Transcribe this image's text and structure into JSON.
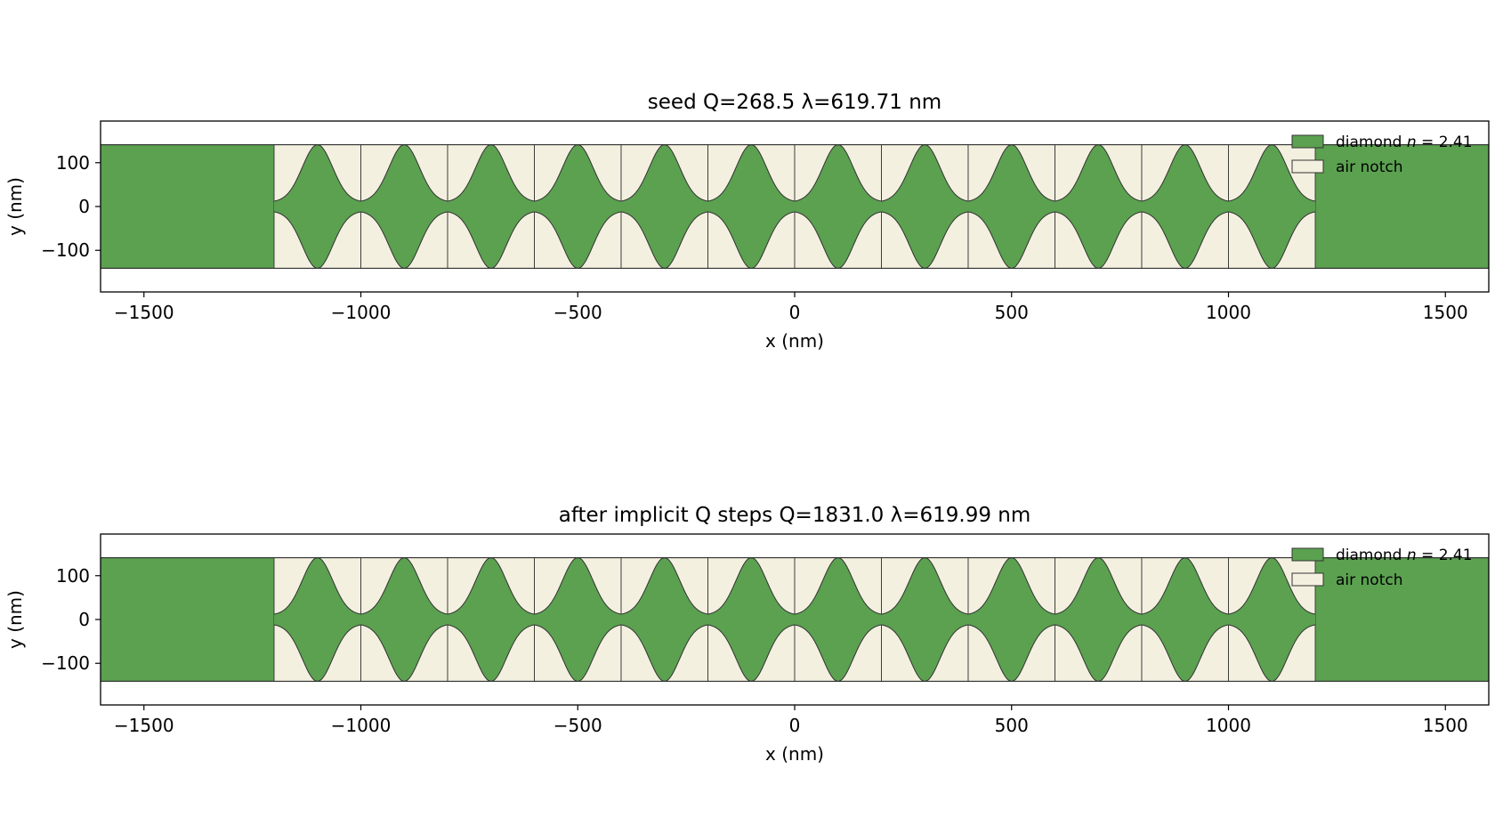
{
  "colors": {
    "diamond": "#5ba150",
    "air": "#f4f0e0",
    "edge": "#333333",
    "axes": "#000000"
  },
  "chart_data": [
    {
      "type": "area",
      "title": "seed  Q=268.5  λ=619.71 nm",
      "xlabel": "x (nm)",
      "ylabel": "y (nm)",
      "xlim": [
        -1600,
        1600
      ],
      "ylim": [
        -195,
        195
      ],
      "xticks": [
        -1500,
        -1000,
        -500,
        0,
        500,
        1000,
        1500
      ],
      "xtick_labels": [
        "−1500",
        "−1000",
        "−500",
        "0",
        "500",
        "1000",
        "1500"
      ],
      "yticks": [
        100,
        0,
        -100
      ],
      "ytick_labels": [
        "100",
        "0",
        "−100"
      ],
      "grid": false,
      "legend_position": "upper right",
      "legend": [
        {
          "label_prefix": "diamond ",
          "label_var": "n",
          "label_suffix": " = 2.41",
          "color_key": "diamond"
        },
        {
          "label_prefix": "air notch",
          "label_var": "",
          "label_suffix": "",
          "color_key": "air"
        }
      ],
      "waveguide": {
        "x_range": [
          -1600,
          1600
        ],
        "half_width": 141
      },
      "notched_region": [
        -1200,
        1200
      ],
      "cell_boundaries": [
        -1200,
        -1000,
        -800,
        -600,
        -400,
        -200,
        0,
        200,
        400,
        600,
        800,
        1000,
        1200
      ],
      "teeth_centers": [
        -1100,
        -900,
        -700,
        -500,
        -300,
        -100,
        100,
        300,
        500,
        700,
        900,
        1100
      ],
      "tooth_base_half_width": 10,
      "tooth_peak_half_width": 141,
      "tooth_shape_sigma": 35
    },
    {
      "type": "area",
      "title": "after implicit Q steps  Q=1831.0  λ=619.99 nm",
      "xlabel": "x (nm)",
      "ylabel": "y (nm)",
      "xlim": [
        -1600,
        1600
      ],
      "ylim": [
        -195,
        195
      ],
      "xticks": [
        -1500,
        -1000,
        -500,
        0,
        500,
        1000,
        1500
      ],
      "xtick_labels": [
        "−1500",
        "−1000",
        "−500",
        "0",
        "500",
        "1000",
        "1500"
      ],
      "yticks": [
        100,
        0,
        -100
      ],
      "ytick_labels": [
        "100",
        "0",
        "−100"
      ],
      "grid": false,
      "legend_position": "upper right",
      "legend": [
        {
          "label_prefix": "diamond ",
          "label_var": "n",
          "label_suffix": " = 2.41",
          "color_key": "diamond"
        },
        {
          "label_prefix": "air notch",
          "label_var": "",
          "label_suffix": "",
          "color_key": "air"
        }
      ],
      "waveguide": {
        "x_range": [
          -1600,
          1600
        ],
        "half_width": 141
      },
      "notched_region": [
        -1200,
        1200
      ],
      "cell_boundaries": [
        -1200,
        -1000,
        -800,
        -600,
        -400,
        -200,
        0,
        200,
        400,
        600,
        800,
        1000,
        1200
      ],
      "teeth_centers": [
        -1100,
        -900,
        -700,
        -500,
        -300,
        -100,
        100,
        300,
        500,
        700,
        900,
        1100
      ],
      "tooth_base_half_width": 10,
      "tooth_peak_half_width": 141,
      "tooth_shape_sigma": 35
    }
  ]
}
